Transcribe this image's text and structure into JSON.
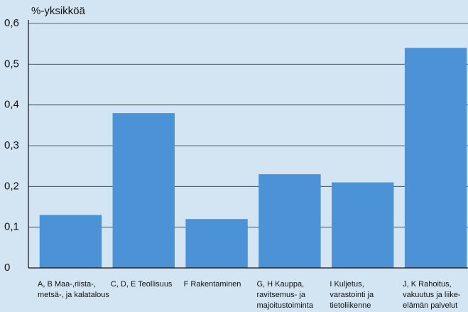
{
  "chart_data": {
    "type": "bar",
    "y_label": "%-yksikköä",
    "categories": [
      [
        "A, B Maa-,riista-,",
        "metsä-, ja kalatalous"
      ],
      [
        "C, D, E Teollisuus"
      ],
      [
        "F Rakentaminen"
      ],
      [
        "G, H Kauppa,",
        "ravitsemus- ja",
        "majoitustoiminta"
      ],
      [
        "I Kuljetus,",
        "varastointi ja",
        "tietoliikenne"
      ],
      [
        "J, K Rahoitus,",
        "vakuutus ja liike-",
        "elämän palvelut"
      ]
    ],
    "values": [
      0.13,
      0.38,
      0.12,
      0.23,
      0.21,
      0.54
    ],
    "color": "#4b93d6",
    "ylim": [
      0,
      0.6
    ],
    "yticks": [
      0,
      {
        "value": 0.1,
        "label": "0,1"
      },
      {
        "value": 0.2,
        "label": "0,2"
      },
      {
        "value": 0.3,
        "label": "0,3"
      },
      {
        "value": 0.4,
        "label": "0,4"
      },
      {
        "value": 0.5,
        "label": "0,5"
      },
      {
        "value": 0.6,
        "label": "0,6"
      }
    ],
    "grid": true
  }
}
